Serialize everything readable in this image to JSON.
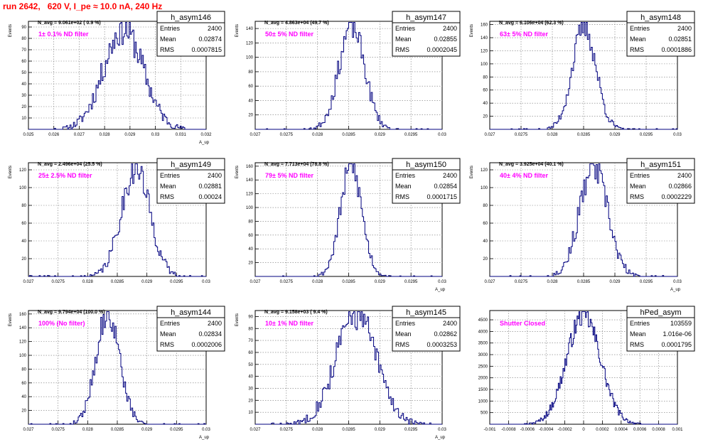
{
  "title": "run 2642,   620 V, I_pe ≈ 10.0 nA, 240 Hz",
  "colors": {
    "title": "#ff0000",
    "histogram": "#00007f",
    "filter_label": "#ff00ff",
    "stat_text": "#000000"
  },
  "stat_labels": {
    "entries": "Entries",
    "mean": "Mean",
    "rms": "RMS"
  },
  "y_axis_label": "Events",
  "x_axis_label": "A_up",
  "chart_data": [
    {
      "type": "histogram",
      "name": "h_asym146",
      "navg": "N_avg = 9.061e+02 ( 0.9 %)",
      "filter": "1± 0.1% ND filter",
      "entries": "2400",
      "mean": "0.02874",
      "rms": "0.0007815",
      "xlim": [
        0.025,
        0.032
      ],
      "ylim": [
        0,
        95
      ],
      "xticks": [
        "0.025",
        "0.026",
        "0.027",
        "0.028",
        "0.029",
        "0.03",
        "0.031",
        "0.032"
      ],
      "yticks": [
        "10",
        "20",
        "30",
        "40",
        "50",
        "60",
        "70",
        "80",
        "90"
      ],
      "xlabel": "A_up",
      "ylabel": "Events",
      "grid": true,
      "legend": "top-right"
    },
    {
      "type": "histogram",
      "name": "h_asym147",
      "navg": "N_avg = 4.863e+04 (49.7 %)",
      "filter": "50± 5% ND filter",
      "entries": "2400",
      "mean": "0.02855",
      "rms": "0.0002045",
      "xlim": [
        0.027,
        0.03
      ],
      "ylim": [
        0,
        150
      ],
      "xticks": [
        "0.027",
        "0.0275",
        "0.028",
        "0.0285",
        "0.029",
        "0.0295",
        "0.03"
      ],
      "yticks": [
        "20",
        "40",
        "60",
        "80",
        "100",
        "120",
        "140"
      ],
      "xlabel": "",
      "ylabel": "Events",
      "grid": true,
      "legend": "top-right"
    },
    {
      "type": "histogram",
      "name": "h_asym148",
      "navg": "N_avg = 6.106e+04 (62.3 %)",
      "filter": "63± 5% ND filter",
      "entries": "2400",
      "mean": "0.02851",
      "rms": "0.0001886",
      "xlim": [
        0.027,
        0.03
      ],
      "ylim": [
        0,
        165
      ],
      "xticks": [
        "0.027",
        "0.0275",
        "0.028",
        "0.0285",
        "0.029",
        "0.0295",
        "0.03"
      ],
      "yticks": [
        "20",
        "40",
        "60",
        "80",
        "100",
        "120",
        "140",
        "160"
      ],
      "xlabel": "",
      "ylabel": "Events",
      "grid": true,
      "legend": "top-right"
    },
    {
      "type": "histogram",
      "name": "h_asym149",
      "navg": "N_avg = 2.496e+04 (25.5 %)",
      "filter": "25± 2.5% ND filter",
      "entries": "2400",
      "mean": "0.02881",
      "rms": "0.00024",
      "xlim": [
        0.027,
        0.03
      ],
      "ylim": [
        0,
        128
      ],
      "xticks": [
        "0.027",
        "0.0275",
        "0.028",
        "0.0285",
        "0.029",
        "0.0295",
        "0.03"
      ],
      "yticks": [
        "20",
        "40",
        "60",
        "80",
        "100",
        "120"
      ],
      "xlabel": "",
      "ylabel": "Events",
      "grid": true,
      "legend": "top-right"
    },
    {
      "type": "histogram",
      "name": "h_asym150",
      "navg": "N_avg = 7.713e+04 (78.8 %)",
      "filter": "79± 5% ND filter",
      "entries": "2400",
      "mean": "0.02854",
      "rms": "0.0001715",
      "xlim": [
        0.027,
        0.03
      ],
      "ylim": [
        0,
        165
      ],
      "xticks": [
        "0.027",
        "0.0275",
        "0.028",
        "0.0285",
        "0.029",
        "0.0295",
        "0.03"
      ],
      "yticks": [
        "20",
        "40",
        "60",
        "80",
        "100",
        "120",
        "140",
        "160"
      ],
      "xlabel": "A_up",
      "ylabel": "Events",
      "grid": true,
      "legend": "top-right"
    },
    {
      "type": "histogram",
      "name": "h_asym151",
      "navg": "N_avg = 3.925e+04 (40.1 %)",
      "filter": "40± 4% ND filter",
      "entries": "2400",
      "mean": "0.02866",
      "rms": "0.0002229",
      "xlim": [
        0.027,
        0.03
      ],
      "ylim": [
        0,
        128
      ],
      "xticks": [
        "0.027",
        "0.0275",
        "0.028",
        "0.0285",
        "0.029",
        "0.0295",
        "0.03"
      ],
      "yticks": [
        "20",
        "40",
        "60",
        "80",
        "100",
        "120"
      ],
      "xlabel": "A_up",
      "ylabel": "Events",
      "grid": true,
      "legend": "top-right"
    },
    {
      "type": "histogram",
      "name": "h_asym144",
      "navg": "N_avg = 9.794e+04 (100.0 %)",
      "filter": "100% (No filter)",
      "entries": "2400",
      "mean": "0.02834",
      "rms": "0.0002006",
      "xlim": [
        0.027,
        0.03
      ],
      "ylim": [
        0,
        165
      ],
      "xticks": [
        "0.027",
        "0.0275",
        "0.028",
        "0.0285",
        "0.029",
        "0.0295",
        "0.03"
      ],
      "yticks": [
        "20",
        "40",
        "60",
        "80",
        "100",
        "120",
        "140",
        "160"
      ],
      "xlabel": "A_up",
      "ylabel": "Events",
      "grid": true,
      "legend": "top-right"
    },
    {
      "type": "histogram",
      "name": "h_asym145",
      "navg": "N_avg = 9.158e+03 ( 9.4 %)",
      "filter": "10± 1% ND filter",
      "entries": "2400",
      "mean": "0.02862",
      "rms": "0.0003253",
      "xlim": [
        0.027,
        0.03
      ],
      "ylim": [
        0,
        95
      ],
      "xticks": [
        "0.027",
        "0.0275",
        "0.028",
        "0.0285",
        "0.029",
        "0.0295",
        "0.03"
      ],
      "yticks": [
        "10",
        "20",
        "30",
        "40",
        "50",
        "60",
        "70",
        "80",
        "90"
      ],
      "xlabel": "A_up",
      "ylabel": "Events",
      "grid": true,
      "legend": "top-right"
    },
    {
      "type": "histogram",
      "name": "hPed_asym",
      "navg": "",
      "filter": "Shutter Closed",
      "entries": "103559",
      "mean": "1.016e-06",
      "rms": "0.0001795",
      "xlim": [
        -0.001,
        0.001
      ],
      "ylim": [
        0,
        4900
      ],
      "xticks": [
        "-0.001",
        "-0.0008",
        "-0.0006",
        "-0.0004",
        "-0.0002",
        "0",
        "0.0002",
        "0.0004",
        "0.0006",
        "0.0008",
        "0.001"
      ],
      "yticks": [
        "500",
        "1000",
        "1500",
        "2000",
        "2500",
        "3000",
        "3500",
        "4000",
        "4500"
      ],
      "xlabel": "",
      "ylabel": "",
      "grid": true,
      "legend": "top-right"
    }
  ]
}
